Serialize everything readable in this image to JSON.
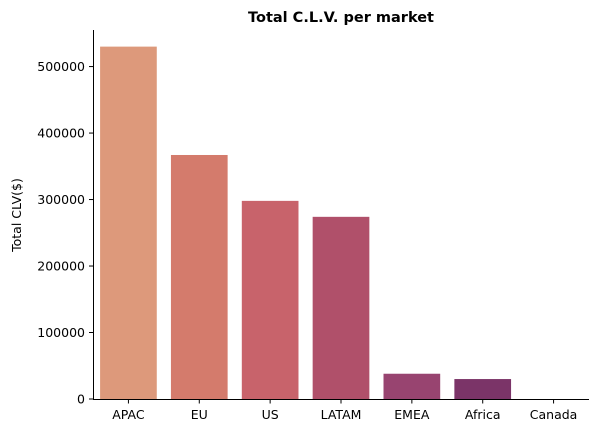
{
  "chart_data": {
    "type": "bar",
    "title": "Total C.L.V. per market",
    "xlabel": "",
    "ylabel": "Total CLV($)",
    "categories": [
      "APAC",
      "EU",
      "US",
      "LATAM",
      "EMEA",
      "Africa",
      "Canada"
    ],
    "values": [
      530000,
      367000,
      298000,
      274000,
      38000,
      30000,
      0
    ],
    "colors": [
      "#dd997b",
      "#d47b6c",
      "#c8636b",
      "#b0506a",
      "#984470",
      "#7b3468",
      "#5b2a5a"
    ],
    "ylim": [
      0,
      555000
    ],
    "yticks": [
      0,
      100000,
      200000,
      300000,
      400000,
      500000
    ],
    "grid": false,
    "spines": [
      "left",
      "bottom"
    ]
  }
}
